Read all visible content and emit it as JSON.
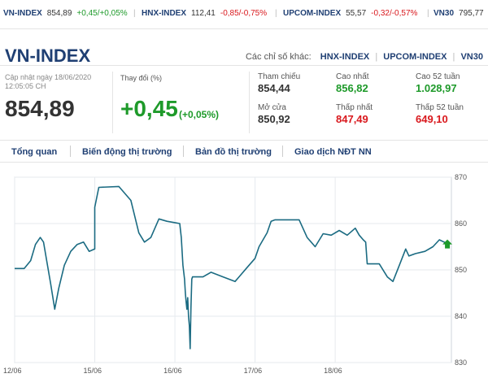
{
  "ticker": [
    {
      "name": "VN-INDEX",
      "price": "854,89",
      "change": "+0,45/+0,05%",
      "dir": "up"
    },
    {
      "name": "HNX-INDEX",
      "price": "112,41",
      "change": "-0,85/-0,75%",
      "dir": "down"
    },
    {
      "name": "UPCOM-INDEX",
      "price": "55,57",
      "change": "-0,32/-0,57%",
      "dir": "down"
    },
    {
      "name": "VN30",
      "price": "795,77",
      "change": "",
      "dir": ""
    }
  ],
  "header": {
    "title": "VN-INDEX",
    "other_label": "Các chỉ số khác:",
    "links": [
      "HNX-INDEX",
      "UPCOM-INDEX",
      "VN30"
    ]
  },
  "summary": {
    "updated": "Cập nhật ngày 18/06/2020 12:05:05 CH",
    "value": "854,89",
    "change_label": "Thay đổi (%)",
    "change": "+0,45",
    "change_pct": "(+0,05%)",
    "stats": {
      "ref_label": "Tham chiếu",
      "ref": "854,44",
      "high_label": "Cao nhất",
      "high": "856,82",
      "high52_label": "Cao 52 tuần",
      "high52": "1.028,97",
      "open_label": "Mở cửa",
      "open": "850,92",
      "low_label": "Thấp nhất",
      "low": "847,49",
      "low52_label": "Thấp 52 tuần",
      "low52": "649,10"
    }
  },
  "tabs": [
    "Tổng quan",
    "Biến động thị trường",
    "Bản đồ thị trường",
    "Giao dịch NĐT NN"
  ],
  "colors": {
    "up": "#1e9a2a",
    "down": "#d9181d",
    "brand": "#1f3f73",
    "line": "#1b6b82"
  },
  "chart_data": {
    "type": "line",
    "title": "",
    "xlabel": "",
    "ylabel": "",
    "ylim": [
      830,
      870
    ],
    "yticks": [
      830,
      840,
      850,
      860,
      870
    ],
    "xticks": [
      "12/06",
      "15/06",
      "16/06",
      "17/06",
      "18/06"
    ],
    "grid": true,
    "series": [
      {
        "values": [
          [
            0,
            850.3
          ],
          [
            0.12,
            850.3
          ],
          [
            0.2,
            852
          ],
          [
            0.26,
            855.5
          ],
          [
            0.32,
            857
          ],
          [
            0.36,
            856
          ],
          [
            0.4,
            852
          ],
          [
            0.45,
            847
          ],
          [
            0.5,
            841.5
          ],
          [
            0.55,
            846
          ],
          [
            0.62,
            851
          ],
          [
            0.7,
            854
          ],
          [
            0.78,
            855.5
          ],
          [
            0.86,
            856
          ],
          [
            0.93,
            854
          ],
          [
            1.0,
            854.5
          ],
          [
            1.0,
            863.5
          ],
          [
            1.05,
            867.8
          ],
          [
            1.3,
            868
          ],
          [
            1.45,
            865
          ],
          [
            1.55,
            858
          ],
          [
            1.62,
            856
          ],
          [
            1.7,
            857
          ],
          [
            1.8,
            861
          ],
          [
            1.9,
            860.5
          ],
          [
            2.0,
            860.2
          ],
          [
            2.06,
            860
          ],
          [
            2.08,
            857
          ],
          [
            2.1,
            851
          ],
          [
            2.12,
            848
          ],
          [
            2.13,
            845
          ],
          [
            2.14,
            843
          ],
          [
            2.15,
            841.5
          ],
          [
            2.16,
            844
          ],
          [
            2.17,
            840
          ],
          [
            2.18,
            838
          ],
          [
            2.19,
            833
          ],
          [
            2.2,
            842
          ],
          [
            2.21,
            848
          ],
          [
            2.22,
            848.5
          ],
          [
            2.35,
            848.5
          ],
          [
            2.45,
            849.5
          ],
          [
            2.6,
            848.5
          ],
          [
            2.75,
            847.5
          ],
          [
            2.8,
            848.5
          ],
          [
            2.9,
            850.5
          ],
          [
            3.0,
            852.5
          ],
          [
            3.05,
            855
          ],
          [
            3.1,
            856.5
          ],
          [
            3.15,
            858
          ],
          [
            3.2,
            860.5
          ],
          [
            3.25,
            860.8
          ],
          [
            3.55,
            860.8
          ],
          [
            3.65,
            857
          ],
          [
            3.75,
            855
          ],
          [
            3.85,
            857.8
          ],
          [
            3.95,
            857.5
          ],
          [
            4.05,
            858.5
          ],
          [
            4.15,
            857.5
          ],
          [
            4.25,
            859
          ],
          [
            4.3,
            857.5
          ],
          [
            4.35,
            856.5
          ],
          [
            4.38,
            856
          ],
          [
            4.4,
            851.3
          ],
          [
            4.55,
            851.3
          ],
          [
            4.65,
            848.5
          ],
          [
            4.72,
            847.5
          ],
          [
            4.8,
            851
          ],
          [
            4.88,
            854.5
          ],
          [
            4.92,
            853
          ],
          [
            5.0,
            853.5
          ],
          [
            5.12,
            854
          ],
          [
            5.22,
            855
          ],
          [
            5.3,
            856.5
          ],
          [
            5.36,
            856
          ],
          [
            5.4,
            855.5
          ]
        ]
      }
    ]
  }
}
